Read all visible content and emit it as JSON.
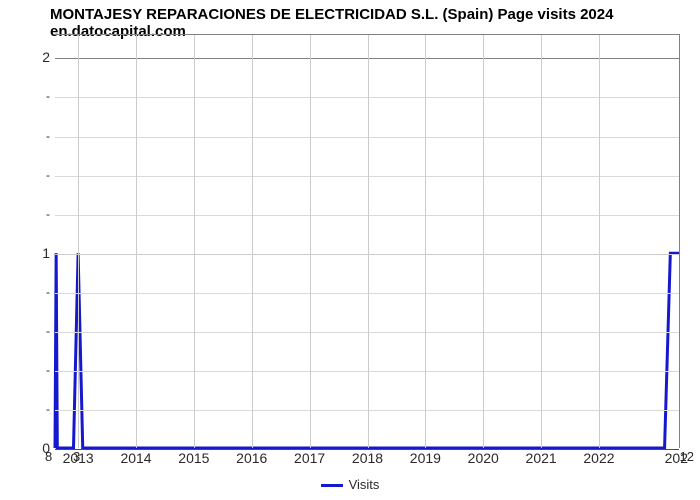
{
  "title": "MONTAJESY REPARACIONES DE ELECTRICIDAD S.L. (Spain) Page visits 2024 en.datocapital.com",
  "chart": {
    "type": "line",
    "title_fontsize": 15,
    "title_color": "#000000",
    "background_color": "#ffffff",
    "plot_border_color": "#808080",
    "grid_color": "#cccccc",
    "grid_minor_color": "#d9d9d9",
    "tick_label_color": "#2a2a2a",
    "tick_label_fontsize": 14,
    "x": {
      "min": 2012.6,
      "max": 2023.4,
      "ticks": [
        2013,
        2014,
        2015,
        2016,
        2017,
        2018,
        2019,
        2020,
        2021,
        2022
      ],
      "tick_labels": [
        "2013",
        "2014",
        "2015",
        "2016",
        "2017",
        "2018",
        "2019",
        "2020",
        "2021",
        "2022"
      ],
      "right_partial_label": "202"
    },
    "y": {
      "min": 0,
      "max": 2.12,
      "major_ticks": [
        0,
        1,
        2
      ],
      "major_labels": [
        "0",
        "1",
        "2"
      ],
      "minor_tick_count_between": 4
    },
    "corner_labels": {
      "bottom_left": "8",
      "bottom_left2": "3",
      "bottom_right": "12"
    },
    "series": [
      {
        "name": "Visits",
        "color": "#1618ce",
        "line_width": 3,
        "points": [
          {
            "x": 2012.6,
            "y": 0
          },
          {
            "x": 2012.62,
            "y": 1
          },
          {
            "x": 2012.64,
            "y": 0
          },
          {
            "x": 2012.92,
            "y": 0
          },
          {
            "x": 2013.0,
            "y": 1
          },
          {
            "x": 2013.08,
            "y": 0
          },
          {
            "x": 2023.15,
            "y": 0
          },
          {
            "x": 2023.25,
            "y": 1
          },
          {
            "x": 2023.4,
            "y": 1
          }
        ]
      }
    ],
    "legend": {
      "position": "bottom-center",
      "items": [
        {
          "label": "Visits",
          "color": "#1618ce",
          "swatch_width": 22,
          "swatch_height": 3
        }
      ],
      "fontsize": 13
    }
  }
}
